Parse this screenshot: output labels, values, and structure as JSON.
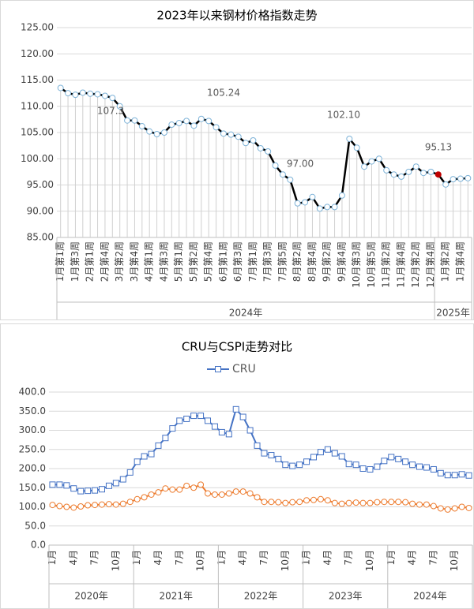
{
  "chart_data": [
    {
      "type": "line",
      "title": "2023年以来钢材价格指数走势",
      "categories": [
        "1月第1周",
        null,
        "1月第3周",
        null,
        "2月第1周",
        null,
        "2月第4周",
        null,
        "3月第2周",
        null,
        "3月第4周",
        null,
        "4月第1周",
        null,
        "4月第3周",
        null,
        "5月第1周",
        null,
        "5月第2周",
        null,
        "5月第4周",
        null,
        "6月第1周",
        null,
        "6月第3周",
        null,
        "7月第1周",
        null,
        "7月第3周",
        null,
        "7月第5周",
        null,
        "8月第2周",
        null,
        "8月第4周",
        null,
        "9月第2周",
        null,
        "9月第4周",
        null,
        "10月第3周",
        null,
        "10月第5周",
        null,
        "11月第2周",
        null,
        "11月第4周",
        null,
        "12月第2周",
        null,
        "12月第4周",
        null,
        "1月第2周",
        null,
        "1月第4周",
        null
      ],
      "groups": [
        "2024年",
        "2025年"
      ],
      "series": [
        {
          "color": "#000000",
          "marker_color": "#7eb3d8",
          "values": [
            113.5,
            112.5,
            112.2,
            112.6,
            112.4,
            112.3,
            112.0,
            111.6,
            110.0,
            107.3,
            107.3,
            106.2,
            105.2,
            104.7,
            105.0,
            106.5,
            106.8,
            107.2,
            106.3,
            107.6,
            107.2,
            106.0,
            104.8,
            104.6,
            104.2,
            103.0,
            103.5,
            102.0,
            101.4,
            98.7,
            97.0,
            96.0,
            91.5,
            91.7,
            92.7,
            90.5,
            90.8,
            90.8,
            93.0,
            103.8,
            102.1,
            98.5,
            99.5,
            100.0,
            97.8,
            97.0,
            96.6,
            97.5,
            98.5,
            97.3,
            97.5,
            97.0,
            95.1,
            96.1,
            96.2,
            96.3
          ]
        }
      ],
      "highlight_point": 51,
      "highlight_color": "#c00000",
      "annotations": [
        "107.3",
        "105.24",
        "97.00",
        "102.10",
        "95.13"
      ],
      "ylim": [
        85,
        125
      ],
      "yticks": [
        {
          "value": 85,
          "label": "85.00"
        },
        {
          "value": 90,
          "label": "90.00"
        },
        {
          "value": 95,
          "label": "95.00"
        },
        {
          "value": 100,
          "label": "100.00"
        },
        {
          "value": 105,
          "label": "105.00"
        },
        {
          "value": 110,
          "label": "110.00"
        },
        {
          "value": 115,
          "label": "115.00"
        },
        {
          "value": 120,
          "label": "120.00"
        },
        {
          "value": 125,
          "label": "125.00"
        }
      ],
      "grid": true,
      "drop_lines": true
    },
    {
      "type": "line",
      "title": "CRU与CSPI走势对比",
      "categories": [
        "1月",
        null,
        null,
        "4月",
        null,
        null,
        "7月",
        null,
        null,
        "10月",
        null,
        null,
        "1月",
        null,
        null,
        "4月",
        null,
        null,
        "7月",
        null,
        null,
        "10月",
        null,
        null,
        "1月",
        null,
        null,
        "4月",
        null,
        null,
        "7月",
        null,
        null,
        "10月",
        null,
        null,
        "1月",
        null,
        null,
        "4月",
        null,
        null,
        "7月",
        null,
        null,
        "10月",
        null,
        null,
        "1月",
        null,
        null,
        "4月",
        null,
        null,
        "7月",
        null,
        null,
        "10月",
        null,
        null
      ],
      "groups": [
        "2020年",
        "2021年",
        "2022年",
        "2023年",
        "2024年"
      ],
      "series": [
        {
          "name": "CRU",
          "color": "#4472c4",
          "marker": "square",
          "values": [
            158,
            158,
            156,
            148,
            141,
            142,
            143,
            146,
            155,
            162,
            172,
            190,
            218,
            232,
            238,
            260,
            280,
            305,
            325,
            330,
            338,
            338,
            325,
            310,
            295,
            290,
            355,
            335,
            300,
            260,
            240,
            235,
            225,
            210,
            207,
            210,
            218,
            230,
            243,
            250,
            240,
            232,
            212,
            210,
            200,
            198,
            205,
            220,
            230,
            225,
            218,
            210,
            205,
            203,
            198,
            188,
            183,
            183,
            185,
            182
          ]
        },
        {
          "color": "#ed7d31",
          "marker": "circle",
          "values": [
            105,
            102,
            100,
            98,
            101,
            104,
            105,
            106,
            107,
            106,
            108,
            113,
            120,
            125,
            132,
            138,
            148,
            145,
            145,
            155,
            150,
            158,
            135,
            132,
            132,
            135,
            140,
            140,
            135,
            125,
            113,
            113,
            112,
            110,
            112,
            113,
            117,
            118,
            120,
            117,
            110,
            108,
            110,
            111,
            110,
            110,
            112,
            113,
            113,
            113,
            112,
            108,
            106,
            106,
            102,
            96,
            93,
            96,
            100,
            97
          ]
        }
      ],
      "ylim": [
        0,
        400
      ],
      "yticks": [
        {
          "value": 0,
          "label": "0.0"
        },
        {
          "value": 50,
          "label": "50.0"
        },
        {
          "value": 100,
          "label": "100.0"
        },
        {
          "value": 150,
          "label": "150.0"
        },
        {
          "value": 200,
          "label": "200.0"
        },
        {
          "value": 250,
          "label": "250.0"
        },
        {
          "value": 300,
          "label": "300.0"
        },
        {
          "value": 350,
          "label": "350.0"
        },
        {
          "value": 400,
          "label": "400.0"
        }
      ],
      "grid": true,
      "legend": "top"
    }
  ]
}
